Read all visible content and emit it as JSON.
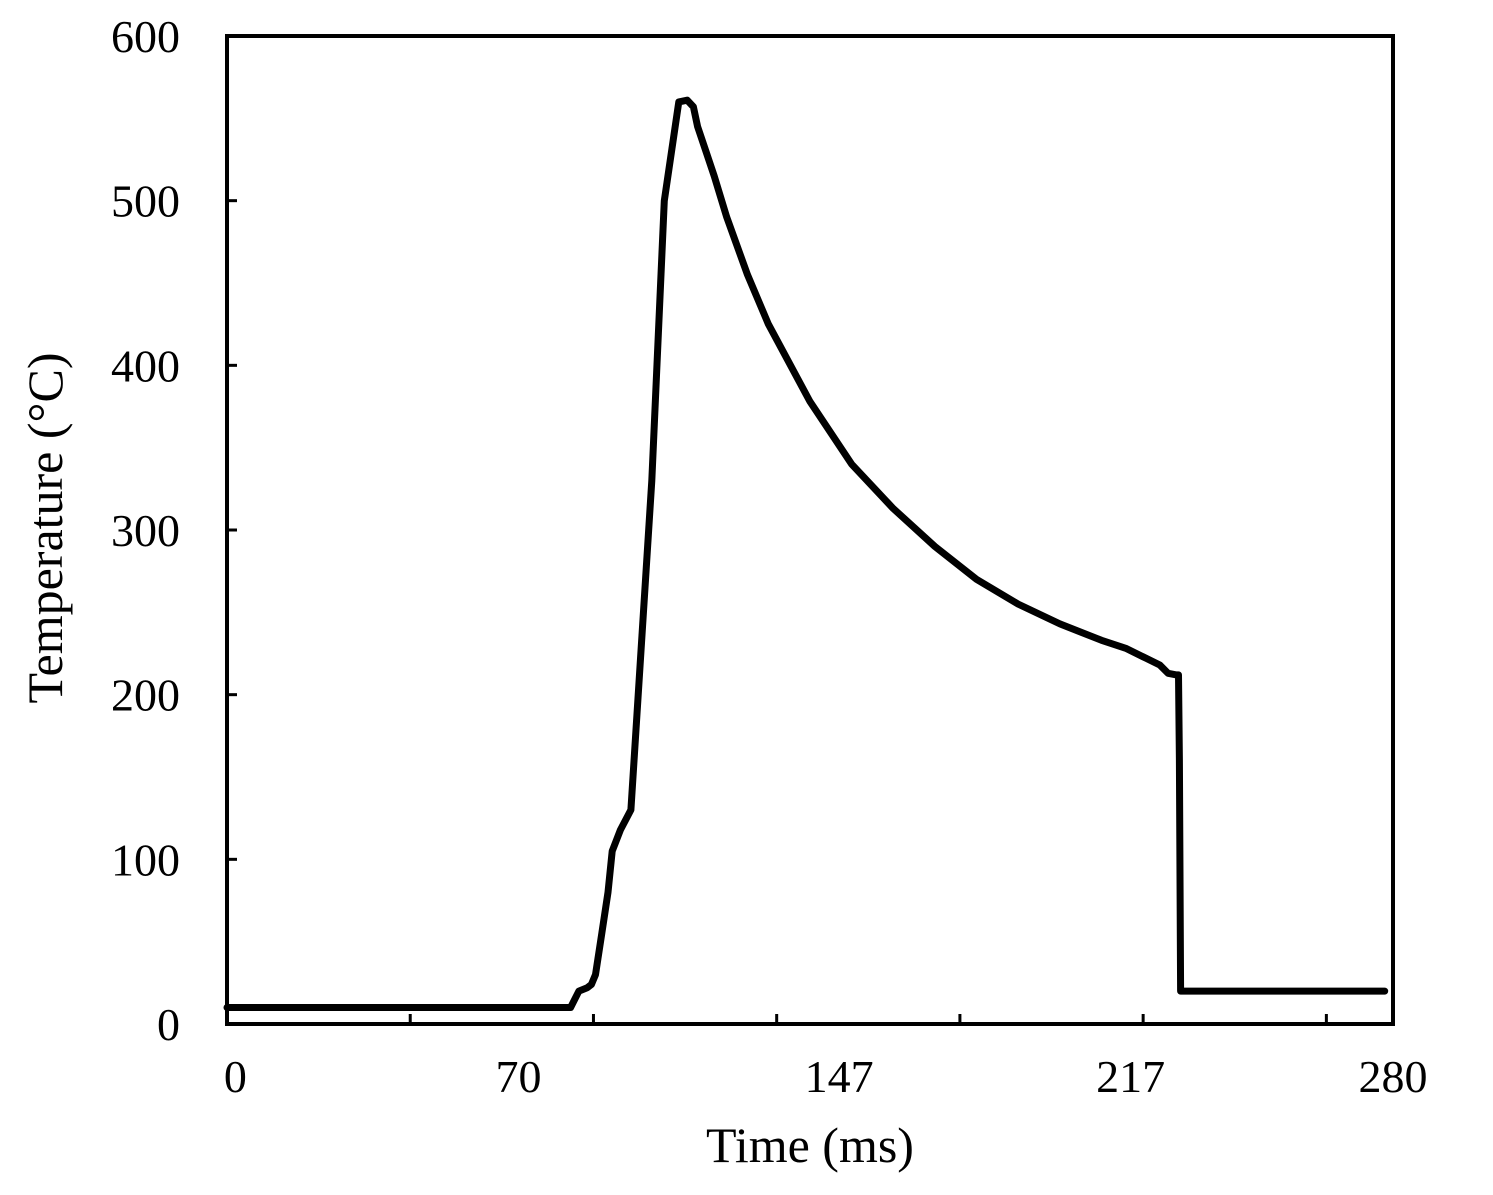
{
  "chart_data": {
    "type": "line",
    "xlabel": "Time (ms)",
    "ylabel": "Temperature (°C)",
    "xlim": [
      0,
      280
    ],
    "ylim": [
      0,
      600
    ],
    "x_tick_values": [
      0,
      44,
      88,
      132,
      176,
      220,
      264
    ],
    "x_tick_labels": [
      {
        "value": 2,
        "label": "0"
      },
      {
        "value": 70,
        "label": "70"
      },
      {
        "value": 147,
        "label": "147"
      },
      {
        "value": 217,
        "label": "217"
      },
      {
        "value": 280,
        "label": "280"
      }
    ],
    "y_ticks": [
      0,
      100,
      200,
      300,
      400,
      500,
      600
    ],
    "grid": false,
    "line_color": "#000000",
    "series": [
      {
        "x": [
          0,
          40,
          82.5,
          84.5,
          86.5,
          87.5,
          88.5,
          90,
          91.5,
          92.5,
          94.5,
          97,
          102,
          105,
          108.5,
          110.5,
          112,
          113,
          115,
          117,
          120,
          125,
          130,
          140,
          150,
          160,
          170,
          180,
          190,
          200,
          210,
          216,
          220,
          224,
          226,
          228,
          228.5,
          228.7,
          229,
          230,
          240,
          250,
          260,
          278
        ],
        "y": [
          10,
          10,
          10,
          20,
          22,
          24,
          30,
          55,
          80,
          105,
          118,
          130,
          330,
          500,
          560,
          561,
          557,
          545,
          530,
          515,
          490,
          455,
          425,
          378,
          340,
          313,
          290,
          270,
          255,
          243,
          233,
          228,
          223,
          218,
          213,
          212,
          212,
          160,
          20,
          20,
          20,
          20,
          20,
          20
        ]
      }
    ]
  }
}
